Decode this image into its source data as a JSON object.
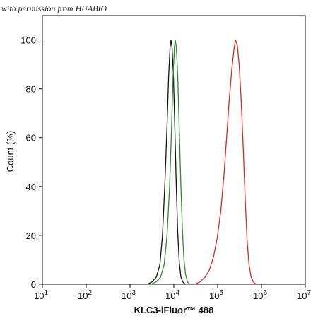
{
  "watermark": "with permission from HUABIO",
  "chart_data": {
    "type": "line",
    "xlabel": "KLC3-iFluor™ 488",
    "ylabel": "Count  (%)",
    "xscale": "log",
    "xlim": [
      10,
      10000000
    ],
    "ylim": [
      0,
      110
    ],
    "grid": false,
    "x_ticks": [
      {
        "value": 10,
        "base": "10",
        "exp": "1"
      },
      {
        "value": 100,
        "base": "10",
        "exp": "2"
      },
      {
        "value": 1000,
        "base": "10",
        "exp": "3"
      },
      {
        "value": 10000,
        "base": "10",
        "exp": "4"
      },
      {
        "value": 100000,
        "base": "10",
        "exp": "5"
      },
      {
        "value": 1000000,
        "base": "10",
        "exp": "6"
      },
      {
        "value": 10000000,
        "base": "10",
        "exp": "7"
      }
    ],
    "y_ticks": [
      0,
      20,
      40,
      60,
      80,
      100
    ],
    "series": [
      {
        "color": "#111111",
        "points": [
          [
            2500,
            0
          ],
          [
            3200,
            1
          ],
          [
            4000,
            3
          ],
          [
            4800,
            8
          ],
          [
            5500,
            20
          ],
          [
            6200,
            40
          ],
          [
            7000,
            65
          ],
          [
            7600,
            85
          ],
          [
            8200,
            97
          ],
          [
            8600,
            100
          ],
          [
            9100,
            97
          ],
          [
            9800,
            85
          ],
          [
            10500,
            65
          ],
          [
            11300,
            42
          ],
          [
            12200,
            22
          ],
          [
            13300,
            9
          ],
          [
            14500,
            3
          ],
          [
            16000,
            1
          ],
          [
            18000,
            0
          ]
        ]
      },
      {
        "color": "#2e8b2e",
        "points": [
          [
            3000,
            0
          ],
          [
            4000,
            1
          ],
          [
            5000,
            3
          ],
          [
            6000,
            8
          ],
          [
            7000,
            20
          ],
          [
            8000,
            40
          ],
          [
            8800,
            62
          ],
          [
            9600,
            85
          ],
          [
            10300,
            97
          ],
          [
            10800,
            100
          ],
          [
            11400,
            97
          ],
          [
            12300,
            85
          ],
          [
            13300,
            63
          ],
          [
            14500,
            40
          ],
          [
            15700,
            22
          ],
          [
            17000,
            10
          ],
          [
            18500,
            4
          ],
          [
            20500,
            1
          ],
          [
            23000,
            0
          ]
        ]
      },
      {
        "color": "#d42a2a",
        "points": [
          [
            30000,
            0
          ],
          [
            40000,
            1
          ],
          [
            52000,
            3
          ],
          [
            65000,
            6
          ],
          [
            80000,
            11
          ],
          [
            98000,
            19
          ],
          [
            118000,
            30
          ],
          [
            140000,
            45
          ],
          [
            160000,
            60
          ],
          [
            185000,
            76
          ],
          [
            210000,
            88
          ],
          [
            235000,
            96
          ],
          [
            255000,
            100
          ],
          [
            280000,
            98
          ],
          [
            310000,
            90
          ],
          [
            345000,
            75
          ],
          [
            385000,
            55
          ],
          [
            425000,
            35
          ],
          [
            470000,
            18
          ],
          [
            520000,
            8
          ],
          [
            580000,
            3
          ],
          [
            650000,
            1
          ],
          [
            750000,
            0
          ]
        ]
      }
    ]
  }
}
